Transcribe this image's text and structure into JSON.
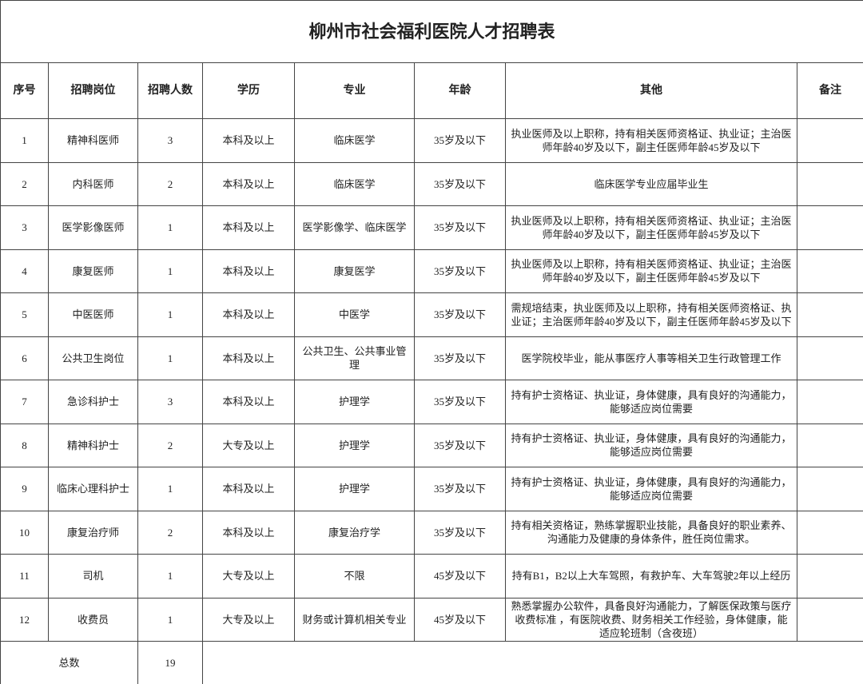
{
  "header": {
    "title": "柳州市社会福利医院人才招聘表"
  },
  "table": {
    "headers": [
      "序号",
      "招聘岗位",
      "招聘人数",
      "学历",
      "专业",
      "年龄",
      "其他",
      "备注"
    ],
    "rows": [
      [
        1,
        "精神科医师",
        3,
        "本科及以上",
        "临床医学",
        "35岁及以下",
        "执业医师及以上职称，持有相关医师资格证、执业证；主治医师年龄40岁及以下，副主任医师年龄45岁及以下"
      ],
      [
        2,
        "内科医师",
        2,
        "本科及以上",
        "临床医学",
        "35岁及以下",
        "临床医学专业应届毕业生"
      ],
      [
        3,
        "医学影像医师",
        1,
        "本科及以上",
        "医学影像学、临床医学",
        "35岁及以下",
        "执业医师及以上职称，持有相关医师资格证、执业证；主治医师年龄40岁及以下，副主任医师年龄45岁及以下"
      ],
      [
        4,
        "康复医师",
        1,
        "本科及以上",
        "康复医学",
        "35岁及以下",
        "执业医师及以上职称，持有相关医师资格证、执业证；主治医师年龄40岁及以下，副主任医师年龄45岁及以下"
      ],
      [
        5,
        "中医医师",
        1,
        "本科及以上",
        "中医学",
        "35岁及以下",
        "需规培结束，执业医师及以上职称，持有相关医师资格证、执业证；主治医师年龄40岁及以下，副主任医师年龄45岁及以下"
      ],
      [
        6,
        "公共卫生岗位",
        1,
        "本科及以上",
        "公共卫生、公共事业管理",
        "35岁及以下",
        "医学院校毕业，能从事医疗人事等相关卫生行政管理工作"
      ],
      [
        7,
        "急诊科护士",
        3,
        "本科及以上",
        "护理学",
        "35岁及以下",
        "持有护士资格证、执业证，身体健康，具有良好的沟通能力，能够适应岗位需要"
      ],
      [
        8,
        "精神科护士",
        2,
        "大专及以上",
        "护理学",
        "35岁及以下",
        "持有护士资格证、执业证，身体健康，具有良好的沟通能力，能够适应岗位需要"
      ],
      [
        9,
        "临床心理科护士",
        1,
        "本科及以上",
        "护理学",
        "35岁及以下",
        "持有护士资格证、执业证，身体健康，具有良好的沟通能力，能够适应岗位需要"
      ],
      [
        10,
        "康复治疗师",
        2,
        "本科及以上",
        "康复治疗学",
        "35岁及以下",
        "持有相关资格证，熟练掌握职业技能，具备良好的职业素养、沟通能力及健康的身体条件，胜任岗位需求。"
      ],
      [
        11,
        "司机",
        1,
        "大专及以上",
        "不限",
        "45岁及以下",
        "持有B1，B2以上大车驾照，有救护车、大车驾驶2年以上经历"
      ],
      [
        12,
        "收费员",
        1,
        "大专及以上",
        "财务或计算机相关专业",
        "45岁及以下",
        "熟悉掌握办公软件，具备良好沟通能力，了解医保政策与医疗收费标准 ，有医院收费、财务相关工作经验，身体健康，能适应轮班制（含夜班）"
      ]
    ],
    "total": {
      "label": "总数",
      "count": 19
    }
  }
}
